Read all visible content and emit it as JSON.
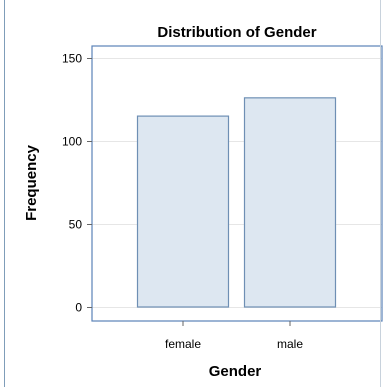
{
  "chart_data": {
    "type": "bar",
    "title": "Distribution of Gender",
    "xlabel": "Gender",
    "ylabel": "Frequency",
    "categories": [
      "female",
      "male"
    ],
    "values": [
      115,
      126
    ],
    "ylim": [
      0,
      150
    ],
    "yticks": [
      "0",
      "50",
      "100",
      "150"
    ],
    "grid": true,
    "legend": "none",
    "colors": {
      "bar_fill": "#dde7f1",
      "bar_stroke": "#6e8fb4",
      "frame": "#5b83b8",
      "grid": "#e6e6e6",
      "tick": "#666666"
    }
  }
}
